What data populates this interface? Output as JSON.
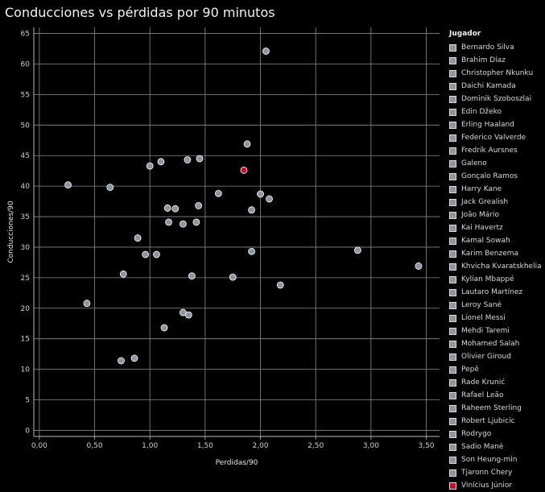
{
  "title": "Conducciones vs pérdidas por 90 minutos",
  "colors": {
    "default": "#8f959f",
    "highlight": "#c8102e",
    "background": "#000000"
  },
  "chart_data": {
    "type": "scatter",
    "xlabel": "Perdidas/90",
    "ylabel": "Conducciones/90",
    "xlim": [
      -0.05,
      3.62
    ],
    "ylim": [
      -1,
      66
    ],
    "xticks": [
      0,
      0.5,
      1,
      1.5,
      2,
      2.5,
      3,
      3.5
    ],
    "xtick_labels": [
      "0,00",
      "0,50",
      "1,00",
      "1,50",
      "2,00",
      "2,50",
      "3,00",
      "3,50"
    ],
    "yticks": [
      0,
      5,
      10,
      15,
      20,
      25,
      30,
      35,
      40,
      45,
      50,
      55,
      60,
      65
    ],
    "ytick_labels": [
      "0",
      "5",
      "10",
      "15",
      "20",
      "25",
      "30",
      "35",
      "40",
      "45",
      "50",
      "55",
      "60",
      "65"
    ],
    "grid": true,
    "legend_title": "Jugador",
    "legend_position": "right",
    "legend": [
      {
        "name": "Bernardo Silva",
        "color": "#8f959f"
      },
      {
        "name": "Brahim Díaz",
        "color": "#8f959f"
      },
      {
        "name": "Christopher Nkunku",
        "color": "#8f959f"
      },
      {
        "name": "Daichi Kamada",
        "color": "#8f959f"
      },
      {
        "name": "Dominik Szoboszlai",
        "color": "#8f959f"
      },
      {
        "name": "Edin Džeko",
        "color": "#8f959f"
      },
      {
        "name": "Erling Haaland",
        "color": "#8f959f"
      },
      {
        "name": "Federico Valverde",
        "color": "#8f959f"
      },
      {
        "name": "Fredrik Aursnes",
        "color": "#8f959f"
      },
      {
        "name": "Galeno",
        "color": "#8f959f"
      },
      {
        "name": "Gonçalo Ramos",
        "color": "#8f959f"
      },
      {
        "name": "Harry Kane",
        "color": "#8f959f"
      },
      {
        "name": "Jack Grealish",
        "color": "#8f959f"
      },
      {
        "name": "João Mário",
        "color": "#8f959f"
      },
      {
        "name": "Kai Havertz",
        "color": "#8f959f"
      },
      {
        "name": "Kamal Sowah",
        "color": "#8f959f"
      },
      {
        "name": "Karim Benzema",
        "color": "#8f959f"
      },
      {
        "name": "Khvicha Kvaratskhelia",
        "color": "#8f959f"
      },
      {
        "name": "Kylian Mbappé",
        "color": "#8f959f"
      },
      {
        "name": "Lautaro Martínez",
        "color": "#8f959f"
      },
      {
        "name": "Leroy Sané",
        "color": "#8f959f"
      },
      {
        "name": "Lionel Messi",
        "color": "#8f959f"
      },
      {
        "name": "Mehdi Taremi",
        "color": "#8f959f"
      },
      {
        "name": "Mohamed Salah",
        "color": "#8f959f"
      },
      {
        "name": "Olivier Giroud",
        "color": "#8f959f"
      },
      {
        "name": "Pepê",
        "color": "#8f959f"
      },
      {
        "name": "Rade Krunić",
        "color": "#8f959f"
      },
      {
        "name": "Rafael Leão",
        "color": "#8f959f"
      },
      {
        "name": "Raheem Sterling",
        "color": "#8f959f"
      },
      {
        "name": "Robert Ljubicic",
        "color": "#8f959f"
      },
      {
        "name": "Rodrygo",
        "color": "#8f959f"
      },
      {
        "name": "Sadio Mané",
        "color": "#8f959f"
      },
      {
        "name": "Son Heung-min",
        "color": "#8f959f"
      },
      {
        "name": "Tjaronn Chery",
        "color": "#8f959f"
      },
      {
        "name": "Vinícius Júnior",
        "color": "#c8102e"
      }
    ],
    "points": [
      {
        "x": 0.26,
        "y": 40.2,
        "highlight": false
      },
      {
        "x": 0.64,
        "y": 39.8,
        "highlight": false
      },
      {
        "x": 0.43,
        "y": 20.8,
        "highlight": false
      },
      {
        "x": 0.74,
        "y": 11.4,
        "highlight": false
      },
      {
        "x": 0.76,
        "y": 25.6,
        "highlight": false
      },
      {
        "x": 0.86,
        "y": 11.8,
        "highlight": false
      },
      {
        "x": 0.89,
        "y": 31.5,
        "highlight": false
      },
      {
        "x": 0.96,
        "y": 28.8,
        "highlight": false
      },
      {
        "x": 1.0,
        "y": 43.3,
        "highlight": false
      },
      {
        "x": 1.06,
        "y": 28.8,
        "highlight": false
      },
      {
        "x": 1.1,
        "y": 44.0,
        "highlight": false
      },
      {
        "x": 1.13,
        "y": 16.8,
        "highlight": false
      },
      {
        "x": 1.16,
        "y": 36.4,
        "highlight": false
      },
      {
        "x": 1.17,
        "y": 34.1,
        "highlight": false
      },
      {
        "x": 1.23,
        "y": 36.3,
        "highlight": false
      },
      {
        "x": 1.3,
        "y": 33.8,
        "highlight": false
      },
      {
        "x": 1.3,
        "y": 19.3,
        "highlight": false
      },
      {
        "x": 1.34,
        "y": 44.3,
        "highlight": false
      },
      {
        "x": 1.35,
        "y": 18.9,
        "highlight": false
      },
      {
        "x": 1.38,
        "y": 25.3,
        "highlight": false
      },
      {
        "x": 1.42,
        "y": 34.1,
        "highlight": false
      },
      {
        "x": 1.44,
        "y": 36.8,
        "highlight": false
      },
      {
        "x": 1.45,
        "y": 44.5,
        "highlight": false
      },
      {
        "x": 1.62,
        "y": 38.8,
        "highlight": false
      },
      {
        "x": 1.75,
        "y": 25.1,
        "highlight": false
      },
      {
        "x": 1.85,
        "y": 42.6,
        "highlight": true
      },
      {
        "x": 1.88,
        "y": 46.9,
        "highlight": false
      },
      {
        "x": 1.92,
        "y": 29.3,
        "highlight": false
      },
      {
        "x": 1.92,
        "y": 36.1,
        "highlight": false
      },
      {
        "x": 2.0,
        "y": 38.7,
        "highlight": false
      },
      {
        "x": 2.05,
        "y": 62.1,
        "highlight": false
      },
      {
        "x": 2.08,
        "y": 37.9,
        "highlight": false
      },
      {
        "x": 2.18,
        "y": 23.8,
        "highlight": false
      },
      {
        "x": 2.88,
        "y": 29.5,
        "highlight": false
      },
      {
        "x": 3.43,
        "y": 26.9,
        "highlight": false
      }
    ]
  }
}
